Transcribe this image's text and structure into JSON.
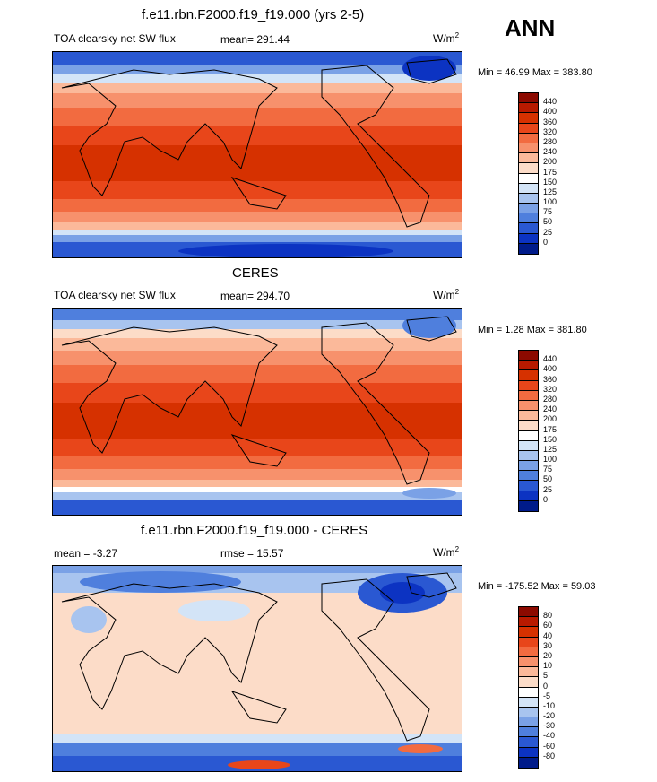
{
  "season": "ANN",
  "units_base": "W/m",
  "units_exp": "2",
  "panels": [
    {
      "title": "f.e11.rbn.F2000.f19_f19.000 (yrs 2-5)",
      "variable": "TOA clearsky net SW flux",
      "stat": "mean= 291.44",
      "minmax": "Min =  46.99 Max = 383.80",
      "levels": [
        "440",
        "400",
        "360",
        "320",
        "280",
        "240",
        "200",
        "175",
        "150",
        "125",
        "100",
        "75",
        "50",
        "25",
        "0"
      ],
      "colors": [
        "#8c0a00",
        "#b81a00",
        "#d63100",
        "#e8461a",
        "#f26b40",
        "#f7916c",
        "#fbb99a",
        "#fcdcc8",
        "#ffffff",
        "#d3e4f7",
        "#a8c4ef",
        "#7aa1e6",
        "#4f7fdd",
        "#2a58d2",
        "#0c33c2",
        "#001b8a"
      ]
    },
    {
      "title": "CERES",
      "variable": "TOA clearsky net SW flux",
      "stat": "mean= 294.70",
      "minmax": "Min =   1.28 Max = 381.80",
      "levels": [
        "440",
        "400",
        "360",
        "320",
        "280",
        "240",
        "200",
        "175",
        "150",
        "125",
        "100",
        "75",
        "50",
        "25",
        "0"
      ],
      "colors": [
        "#8c0a00",
        "#b81a00",
        "#d63100",
        "#e8461a",
        "#f26b40",
        "#f7916c",
        "#fbb99a",
        "#fcdcc8",
        "#ffffff",
        "#d3e4f7",
        "#a8c4ef",
        "#7aa1e6",
        "#4f7fdd",
        "#2a58d2",
        "#0c33c2",
        "#001b8a"
      ]
    },
    {
      "title": "f.e11.rbn.F2000.f19_f19.000 - CERES",
      "variable": "mean =  -3.27",
      "stat": "rmse =  15.57",
      "minmax": "Min = -175.52 Max =  59.03",
      "levels": [
        "80",
        "60",
        "40",
        "30",
        "20",
        "10",
        "5",
        "0",
        "-5",
        "-10",
        "-20",
        "-30",
        "-40",
        "-60",
        "-80"
      ],
      "colors": [
        "#8c0a00",
        "#b81a00",
        "#d63100",
        "#e8461a",
        "#f26b40",
        "#f7916c",
        "#fbb99a",
        "#fcdcc8",
        "#ffffff",
        "#d3e4f7",
        "#a8c4ef",
        "#7aa1e6",
        "#4f7fdd",
        "#2a58d2",
        "#0c33c2",
        "#001b8a"
      ]
    }
  ],
  "chart_data": [
    {
      "type": "heatmap",
      "title": "f.e11.rbn.F2000.f19_f19.000 (yrs 2-5)",
      "subtitle": "TOA clearsky net SW flux",
      "mean": 291.44,
      "min": 46.99,
      "max": 383.8,
      "units": "W/m2",
      "colorbar_levels": [
        0,
        25,
        50,
        75,
        100,
        125,
        150,
        175,
        200,
        240,
        280,
        320,
        360,
        400,
        440
      ]
    },
    {
      "type": "heatmap",
      "title": "CERES",
      "subtitle": "TOA clearsky net SW flux",
      "mean": 294.7,
      "min": 1.28,
      "max": 381.8,
      "units": "W/m2",
      "colorbar_levels": [
        0,
        25,
        50,
        75,
        100,
        125,
        150,
        175,
        200,
        240,
        280,
        320,
        360,
        400,
        440
      ]
    },
    {
      "type": "heatmap",
      "title": "f.e11.rbn.F2000.f19_f19.000 - CERES",
      "mean": -3.27,
      "rmse": 15.57,
      "min": -175.52,
      "max": 59.03,
      "units": "W/m2",
      "colorbar_levels": [
        -80,
        -60,
        -40,
        -30,
        -20,
        -10,
        -5,
        0,
        5,
        10,
        20,
        30,
        40,
        60,
        80
      ]
    }
  ]
}
